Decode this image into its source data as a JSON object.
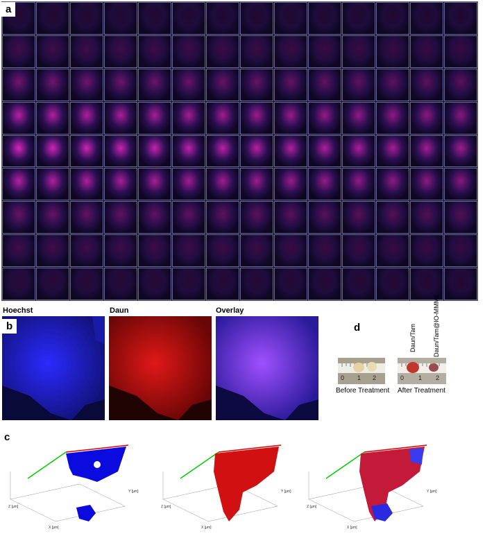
{
  "panels": {
    "a": "a",
    "b": "b",
    "c": "c",
    "d": "d"
  },
  "grid": {
    "rows": 9,
    "cols": 14
  },
  "channels": [
    {
      "title": "Hoechst",
      "color": "#1a1aff"
    },
    {
      "title": "Daun",
      "color": "#d01010"
    },
    {
      "title": "Overlay",
      "color": "#7a3cff"
    }
  ],
  "treatment": {
    "labels_rotated": [
      "Daun/Tam",
      "Daun/Tam@IO-MMMs"
    ],
    "before_caption": "Before Treatment",
    "after_caption": "After Treatment",
    "ruler_digits_before": [
      "0",
      "1",
      "2"
    ],
    "ruler_digits_after": [
      "0",
      "1",
      "2"
    ]
  },
  "volume_axes": {
    "z": "Z [µm]",
    "x": "X [µm]",
    "y": "Y [µm]"
  }
}
